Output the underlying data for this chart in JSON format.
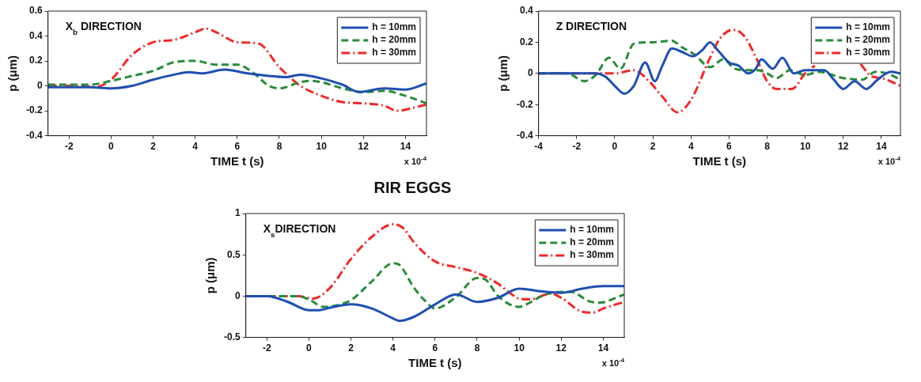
{
  "chart_data": [
    {
      "type": "line",
      "xlabel": "TIME t (s)",
      "ylabel": "p (μm)",
      "annotations": [
        "X$_{b}$ DIRECTION",
        "x 10$^{-4}$"
      ],
      "xlim": [
        -3,
        15
      ],
      "xticks": [
        -2,
        0,
        2,
        4,
        6,
        8,
        10,
        12,
        14
      ],
      "ylim": [
        -0.4,
        0.6
      ],
      "yticks": [
        -0.4,
        -0.2,
        0,
        0.2,
        0.4,
        0.6
      ],
      "grid": false,
      "legend": "top right",
      "marker": "none",
      "series": [
        {
          "name": "h = 10mm",
          "color": "#1f4fb0",
          "line_style": "solid",
          "x": [
            -3,
            -1,
            0,
            1,
            2,
            3,
            3.7,
            4.3,
            5.4,
            6.5,
            7.5,
            8.3,
            9,
            10,
            11,
            11.8,
            13,
            14,
            15
          ],
          "values": [
            -0.01,
            -0.01,
            -0.02,
            0.0,
            0.05,
            0.09,
            0.11,
            0.1,
            0.13,
            0.1,
            0.08,
            0.07,
            0.09,
            0.06,
            0.01,
            -0.05,
            -0.02,
            -0.03,
            0.02
          ]
        },
        {
          "name": "h = 20mm",
          "color": "#2a8a3a",
          "line_style": "dashed",
          "x": [
            -3,
            -1,
            0,
            1,
            2,
            3,
            4,
            5,
            6,
            6.8,
            7.5,
            8,
            9,
            9.5,
            10,
            11,
            12,
            13,
            14,
            15
          ],
          "values": [
            0.01,
            0.01,
            0.04,
            0.08,
            0.12,
            0.19,
            0.2,
            0.17,
            0.17,
            0.1,
            0.0,
            -0.02,
            0.03,
            0.04,
            0.03,
            -0.02,
            -0.05,
            -0.04,
            -0.08,
            -0.14
          ]
        },
        {
          "name": "h = 30mm",
          "color": "#ee2a2a",
          "line_style": "dashdot",
          "x": [
            -3,
            -1.5,
            -0.8,
            0,
            1,
            2,
            3,
            4,
            4.5,
            5,
            6,
            7,
            8,
            8.5,
            9,
            10,
            11,
            12,
            13,
            13.6,
            14.5,
            15
          ],
          "values": [
            0.0,
            0.0,
            -0.01,
            0.05,
            0.25,
            0.35,
            0.37,
            0.43,
            0.46,
            0.43,
            0.35,
            0.34,
            0.15,
            0.07,
            0.0,
            -0.08,
            -0.13,
            -0.14,
            -0.16,
            -0.2,
            -0.17,
            -0.15
          ]
        }
      ]
    },
    {
      "type": "line",
      "xlabel": "TIME t (s)",
      "ylabel": "p (μm)",
      "annotations": [
        "Z DIRECTION",
        "x 10$^{-4}$"
      ],
      "xlim": [
        -4,
        15
      ],
      "xticks": [
        -4,
        -2,
        0,
        2,
        4,
        6,
        8,
        10,
        12,
        14
      ],
      "ylim": [
        -0.4,
        0.4
      ],
      "yticks": [
        -0.4,
        -0.2,
        0,
        0.2,
        0.4
      ],
      "grid": false,
      "legend": "top right",
      "marker": "none",
      "series": [
        {
          "name": "h = 10mm",
          "color": "#1f4fb0",
          "line_style": "solid",
          "x": [
            -4,
            -1,
            -0.5,
            0,
            0.5,
            1,
            1.6,
            2.1,
            2.5,
            3,
            3.5,
            4.1,
            4.6,
            5,
            5.4,
            6,
            6.5,
            7,
            7.4,
            7.7,
            8.3,
            8.8,
            9.4,
            10,
            11,
            11.5,
            12,
            12.6,
            13.2,
            13.8,
            14.5,
            15
          ],
          "values": [
            0.0,
            0.0,
            -0.02,
            -0.08,
            -0.13,
            -0.08,
            0.07,
            -0.05,
            0.05,
            0.16,
            0.14,
            0.11,
            0.15,
            0.2,
            0.15,
            0.07,
            0.05,
            0.0,
            0.03,
            0.09,
            0.03,
            0.1,
            0.0,
            0.02,
            0.02,
            -0.04,
            -0.1,
            -0.05,
            -0.1,
            -0.04,
            0.01,
            0.0
          ]
        },
        {
          "name": "h = 20mm",
          "color": "#2a8a3a",
          "line_style": "dashed",
          "x": [
            -4,
            -2.5,
            -1.6,
            -1,
            -0.3,
            0.3,
            1,
            2,
            3,
            3.5,
            4.2,
            5,
            5.7,
            6.3,
            7,
            7.5,
            8,
            8.5,
            9.2,
            10,
            10.7,
            12,
            13,
            13.7,
            14.3,
            15
          ],
          "values": [
            0.0,
            0.0,
            -0.05,
            -0.01,
            0.1,
            0.03,
            0.19,
            0.2,
            0.21,
            0.17,
            0.12,
            0.04,
            0.09,
            0.03,
            0.02,
            0.02,
            0.0,
            -0.03,
            0.02,
            -0.01,
            0.01,
            -0.03,
            -0.04,
            0.01,
            0.0,
            -0.04
          ]
        },
        {
          "name": "h = 30mm",
          "color": "#ee2a2a",
          "line_style": "dashdot",
          "x": [
            -4,
            0,
            1,
            1.8,
            2.5,
            3.3,
            4,
            5,
            5.5,
            6.2,
            6.8,
            7.5,
            8,
            8.5,
            9.3,
            10,
            10.5,
            11.5,
            12,
            12.9,
            13.5,
            14,
            15
          ],
          "values": [
            0.0,
            0.0,
            0.02,
            -0.05,
            -0.15,
            -0.25,
            -0.17,
            0.1,
            0.22,
            0.28,
            0.24,
            0.08,
            -0.05,
            -0.1,
            -0.1,
            0.0,
            0.05,
            null,
            null,
            0.06,
            -0.02,
            -0.03,
            -0.08
          ]
        }
      ]
    },
    {
      "type": "line",
      "title": "RIR EGGS",
      "xlabel": "TIME t (s)",
      "ylabel": "p (μm)",
      "annotations": [
        "X$_{s}$DIRECTION",
        "x 10$^{-4}$"
      ],
      "xlim": [
        -3,
        15
      ],
      "xticks": [
        -2,
        0,
        2,
        4,
        6,
        8,
        10,
        12,
        14
      ],
      "ylim": [
        -0.5,
        1
      ],
      "yticks": [
        -0.5,
        0,
        0.5,
        1
      ],
      "grid": false,
      "legend": "top right",
      "marker": "none",
      "series": [
        {
          "name": "h = 10mm",
          "color": "#1f4fb0",
          "line_style": "solid",
          "x": [
            -3,
            -2,
            -1,
            0,
            0.5,
            1,
            2,
            3,
            4,
            4.3,
            5,
            6,
            7,
            8,
            9,
            10,
            11,
            12,
            13,
            14,
            15
          ],
          "values": [
            0.0,
            0.0,
            -0.07,
            -0.17,
            -0.17,
            -0.14,
            -0.1,
            -0.15,
            -0.27,
            -0.3,
            -0.25,
            -0.1,
            0.02,
            -0.07,
            -0.02,
            0.09,
            0.06,
            0.04,
            0.09,
            0.12,
            0.12
          ]
        },
        {
          "name": "h = 20mm",
          "color": "#2a8a3a",
          "line_style": "dashed",
          "x": [
            -3,
            -0.5,
            0,
            0.7,
            1.5,
            2,
            3,
            4,
            4.3,
            5,
            5.5,
            6,
            7,
            8,
            8.4,
            9,
            10,
            10.5,
            11,
            11.8,
            12.5,
            13.3,
            13.8,
            15
          ],
          "values": [
            0.0,
            0.0,
            -0.04,
            -0.13,
            -0.1,
            -0.05,
            0.18,
            0.4,
            0.38,
            0.1,
            -0.05,
            -0.15,
            -0.01,
            0.22,
            0.2,
            0.0,
            -0.13,
            -0.08,
            -0.01,
            0.05,
            0.05,
            -0.06,
            -0.08,
            0.02
          ]
        },
        {
          "name": "h = 30mm",
          "color": "#ee2a2a",
          "line_style": "dashdot",
          "x": [
            -3,
            -0.5,
            0.2,
            1,
            2,
            3,
            4,
            4.5,
            5,
            6,
            7,
            8,
            9,
            9.5,
            10,
            10.5,
            11.5,
            12,
            13,
            13.5,
            14,
            15
          ],
          "values": [
            0.0,
            0.0,
            -0.03,
            0.1,
            0.45,
            0.72,
            0.87,
            0.82,
            0.65,
            0.42,
            0.35,
            0.28,
            0.15,
            0.05,
            -0.03,
            -0.04,
            0.03,
            -0.02,
            -0.19,
            -0.2,
            -0.15,
            -0.07
          ]
        }
      ]
    }
  ]
}
